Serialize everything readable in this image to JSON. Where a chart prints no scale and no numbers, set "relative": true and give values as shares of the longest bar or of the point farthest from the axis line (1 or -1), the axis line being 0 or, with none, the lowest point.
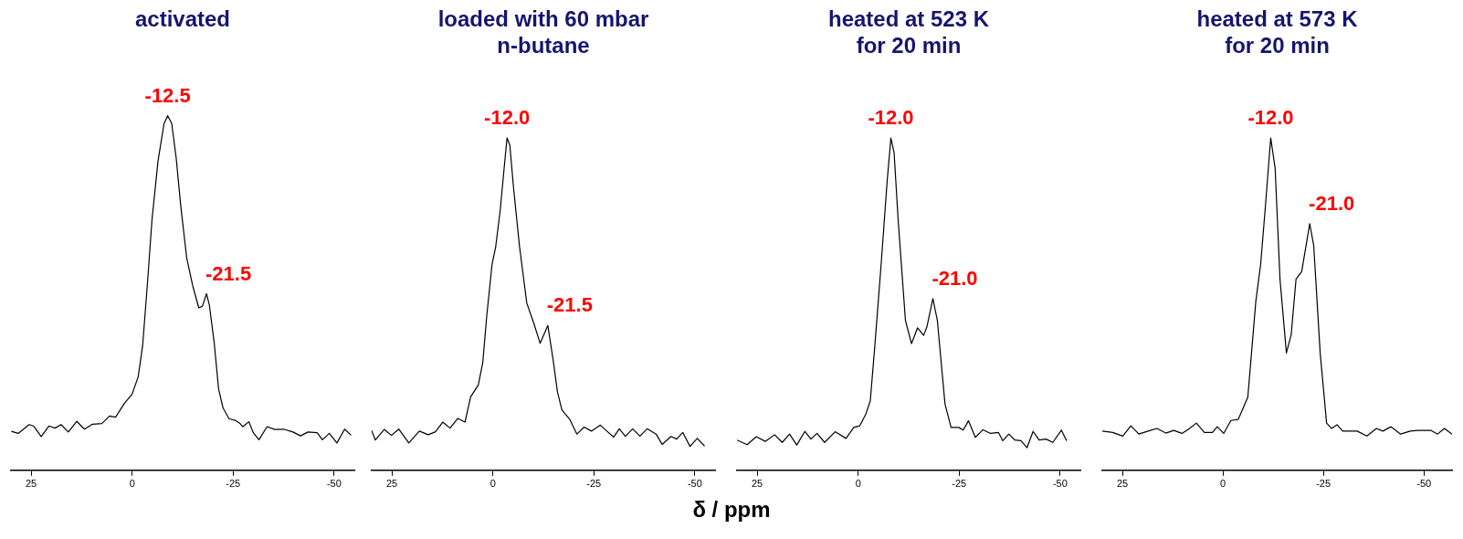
{
  "chart_data": [
    {
      "type": "line",
      "title": "activated",
      "relative": true,
      "xlim": [
        30,
        -55
      ],
      "xticks": [
        25,
        0,
        -25,
        -50
      ],
      "x": [
        29.9,
        28.2,
        25.5,
        24.4,
        22.5,
        20.6,
        19.1,
        17.6,
        15.8,
        13.7,
        11.8,
        9.8,
        7.5,
        5.6,
        4.1,
        1.9,
        0,
        -1.5,
        -2.6,
        -3.8,
        -4.9,
        -6.4,
        -7.9,
        -8.8,
        -9.8,
        -10.9,
        -12.0,
        -13.5,
        -15.0,
        -16.5,
        -17.4,
        -18.4,
        -19.1,
        -20.3,
        -21.4,
        -22.5,
        -24.0,
        -25.5,
        -26.7,
        -27.4,
        -28.9,
        -30.0,
        -31.4,
        -33.4,
        -35.3,
        -37.5,
        -39.8,
        -41.7,
        -43.5,
        -45.8,
        -47.1,
        -48.8,
        -50.7,
        -52.6,
        -54.2
      ],
      "series": [
        {
          "color": "#000000",
          "values": [
            0.11,
            0.104,
            0.129,
            0.125,
            0.095,
            0.125,
            0.119,
            0.129,
            0.108,
            0.138,
            0.116,
            0.13,
            0.132,
            0.153,
            0.15,
            0.189,
            0.215,
            0.264,
            0.352,
            0.529,
            0.705,
            0.872,
            0.978,
            1,
            0.978,
            0.881,
            0.749,
            0.599,
            0.52,
            0.458,
            0.463,
            0.498,
            0.467,
            0.361,
            0.229,
            0.176,
            0.145,
            0.141,
            0.132,
            0.123,
            0.137,
            0.106,
            0.086,
            0.123,
            0.115,
            0.116,
            0.108,
            0.097,
            0.108,
            0.106,
            0.086,
            0.104,
            0.077,
            0.116,
            0.099
          ]
        }
      ],
      "annotations": [
        {
          "text": "-12.5",
          "x": -8.8,
          "y": 1
        },
        {
          "text": "-21.5",
          "x": -18.4,
          "y": 0.498
        }
      ]
    },
    {
      "type": "line",
      "title": "loaded with 60 mbar\nn-butane",
      "xlabel": "δ / ppm",
      "relative": true,
      "xlim": [
        30,
        -55
      ],
      "xticks": [
        25,
        0,
        -25,
        -50
      ],
      "x": [
        30.0,
        29.1,
        26.9,
        25.1,
        23.3,
        20.8,
        18.2,
        16.0,
        14.2,
        12.4,
        10.6,
        8.7,
        6.9,
        5.5,
        3.6,
        2.5,
        1.5,
        0.2,
        -0.7,
        -1.8,
        -2.9,
        -3.5,
        -4.2,
        -5.1,
        -6.6,
        -8.4,
        -10.2,
        -11.7,
        -13.6,
        -14.9,
        -16.0,
        -17.1,
        -19.0,
        -20.8,
        -22.6,
        -24.4,
        -26.6,
        -28.4,
        -29.9,
        -31.3,
        -32.8,
        -34.6,
        -36.4,
        -38.2,
        -40.4,
        -41.9,
        -44.1,
        -45.5,
        -47.0,
        -48.8,
        -50.6,
        -52.4
      ],
      "series": [
        {
          "color": "#000000",
          "values": [
            0.12,
            0.091,
            0.123,
            0.105,
            0.124,
            0.082,
            0.118,
            0.107,
            0.116,
            0.145,
            0.127,
            0.156,
            0.145,
            0.221,
            0.257,
            0.324,
            0.467,
            0.62,
            0.673,
            0.781,
            0.924,
            1,
            0.978,
            0.852,
            0.673,
            0.503,
            0.44,
            0.382,
            0.436,
            0.333,
            0.235,
            0.181,
            0.154,
            0.109,
            0.13,
            0.118,
            0.136,
            0.116,
            0.1,
            0.125,
            0.102,
            0.125,
            0.103,
            0.125,
            0.109,
            0.078,
            0.102,
            0.094,
            0.114,
            0.072,
            0.096,
            0.073
          ]
        }
      ],
      "annotations": [
        {
          "text": "-12.0",
          "x": -3.5,
          "y": 1
        },
        {
          "text": "-21.5",
          "x": -13.6,
          "y": 0.436
        }
      ]
    },
    {
      "type": "line",
      "title": "heated at 523 K\nfor 20 min",
      "relative": true,
      "xlim": [
        30,
        -55
      ],
      "xticks": [
        25,
        0,
        -25,
        -50
      ],
      "x": [
        30.0,
        27.5,
        25.2,
        23.0,
        20.7,
        18.8,
        17.0,
        15.2,
        13.2,
        11.7,
        10.2,
        8.3,
        5.7,
        3.0,
        1.1,
        -0.4,
        -1.9,
        -3.0,
        -4.1,
        -5.7,
        -7.2,
        -8.1,
        -8.9,
        -9.9,
        -11.7,
        -13.2,
        -14.7,
        -16.2,
        -17.0,
        -18.5,
        -19.6,
        -21.5,
        -23.0,
        -24.9,
        -26.0,
        -27.3,
        -29.0,
        -30.9,
        -32.8,
        -34.7,
        -35.8,
        -37.3,
        -38.8,
        -40.3,
        -41.8,
        -43.3,
        -44.8,
        -46.5,
        -48.2,
        -50.3,
        -51.6
      ],
      "series": [
        {
          "color": "#000000",
          "values": [
            0.091,
            0.077,
            0.101,
            0.087,
            0.107,
            0.084,
            0.109,
            0.076,
            0.117,
            0.094,
            0.111,
            0.084,
            0.116,
            0.096,
            0.129,
            0.134,
            0.169,
            0.209,
            0.371,
            0.622,
            0.874,
            1,
            0.955,
            0.753,
            0.451,
            0.381,
            0.429,
            0.406,
            0.431,
            0.517,
            0.451,
            0.199,
            0.129,
            0.129,
            0.121,
            0.149,
            0.099,
            0.122,
            0.111,
            0.114,
            0.089,
            0.109,
            0.091,
            0.089,
            0.068,
            0.117,
            0.091,
            0.094,
            0.084,
            0.121,
            0.089
          ]
        }
      ],
      "annotations": [
        {
          "text": "-12.0",
          "x": -8.1,
          "y": 1
        },
        {
          "text": "-21.0",
          "x": -18.5,
          "y": 0.517
        }
      ]
    },
    {
      "type": "line",
      "title": "heated at 573 K\nfor 20 min",
      "relative": true,
      "xlim": [
        30,
        -57
      ],
      "xticks": [
        25,
        0,
        -25,
        -50
      ],
      "x": [
        30.0,
        27.4,
        24.9,
        22.9,
        20.9,
        18.6,
        16.4,
        14.2,
        12.2,
        10.2,
        8.6,
        6.6,
        4.6,
        2.6,
        1.4,
        -0.2,
        -2.0,
        -3.8,
        -6.2,
        -8.2,
        -9.4,
        -10.6,
        -11.9,
        -13.0,
        -14.2,
        -15.8,
        -17.0,
        -18.2,
        -19.6,
        -21.6,
        -22.6,
        -24.2,
        -25.8,
        -27.0,
        -28.4,
        -29.8,
        -33.4,
        -35.8,
        -38.2,
        -39.8,
        -41.8,
        -44.2,
        -46.6,
        -48.6,
        -51.8,
        -53.4,
        -55.1,
        -57.0
      ],
      "series": [
        {
          "color": "#000000",
          "values": [
            0.118,
            0.114,
            0.103,
            0.134,
            0.109,
            0.118,
            0.126,
            0.112,
            0.12,
            0.111,
            0.123,
            0.142,
            0.114,
            0.114,
            0.131,
            0.111,
            0.15,
            0.153,
            0.22,
            0.509,
            0.62,
            0.798,
            1,
            0.909,
            0.576,
            0.353,
            0.409,
            0.576,
            0.598,
            0.742,
            0.676,
            0.353,
            0.142,
            0.126,
            0.137,
            0.118,
            0.118,
            0.103,
            0.126,
            0.118,
            0.131,
            0.109,
            0.118,
            0.12,
            0.12,
            0.109,
            0.126,
            0.109
          ]
        }
      ],
      "annotations": [
        {
          "text": "-12.0",
          "x": -11.9,
          "y": 1
        },
        {
          "text": "-21.0",
          "x": -21.6,
          "y": 0.742
        }
      ]
    }
  ]
}
